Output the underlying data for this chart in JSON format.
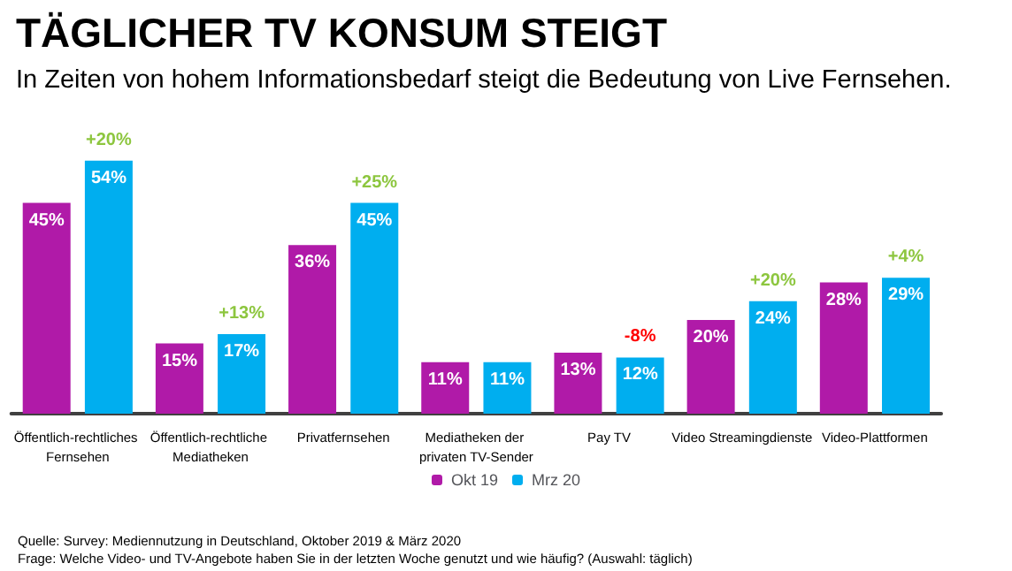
{
  "chart_data": {
    "type": "bar",
    "title": "TÄGLICHER TV KONSUM STEIGT",
    "subtitle": "In Zeiten von hohem Informationsbedarf steigt die Bedeutung von Live Fernsehen.",
    "categories": [
      "Öffentlich-rechtliches Fernsehen",
      "Öffentlich-rechtliche Mediatheken",
      "Privatfernsehen",
      "Mediatheken der privaten TV-Sender",
      "Pay TV",
      "Video Streamingdienste",
      "Video-Plattformen"
    ],
    "series": [
      {
        "name": "Okt 19",
        "color": "#b01aa8",
        "values": [
          45,
          15,
          36,
          11,
          13,
          20,
          28
        ],
        "value_labels": [
          "45%",
          "15%",
          "36%",
          "11%",
          "13%",
          "20%",
          "28%"
        ]
      },
      {
        "name": "Mrz 20",
        "color": "#00aeef",
        "values": [
          54,
          17,
          45,
          11,
          12,
          24,
          29
        ],
        "value_labels": [
          "54%",
          "17%",
          "45%",
          "11%",
          "12%",
          "24%",
          "29%"
        ]
      }
    ],
    "legend": "bottom",
    "annotations": [
      {
        "text": "+20%",
        "x": "Öffentlich-rechtliches Fernsehen",
        "y": 54
      },
      {
        "text": "+13%",
        "x": "Öffentlich-rechtliche Mediatheken",
        "y": 17
      },
      {
        "text": "+25%",
        "x": "Privatfernsehen",
        "y": 45
      },
      {
        "text": "-8%",
        "x": "Pay TV",
        "y": 12
      },
      {
        "text": "+20%",
        "x": "Video Streamingdienste",
        "y": 24
      },
      {
        "text": "+4%",
        "x": "Video-Plattformen",
        "y": 29
      },
      "Quelle: Survey: Mediennutzung in Deutschland, Oktober 2019 & März 2020",
      "Frage: Welche Video- und TV-Angebote haben Sie in der letzten Woche genutzt und wie häufig? (Auswahl: täglich)"
    ]
  }
}
